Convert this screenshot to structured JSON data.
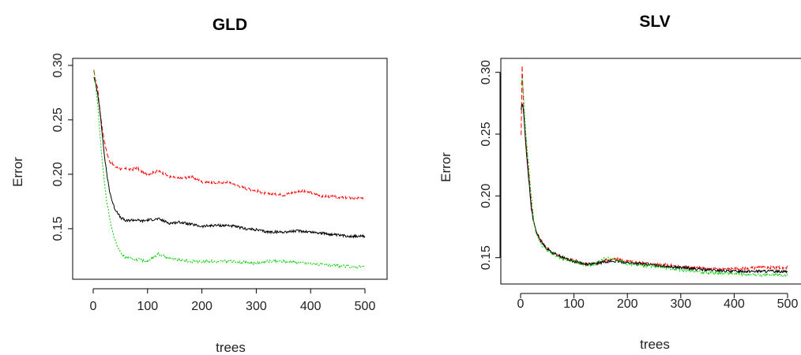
{
  "chart_data": [
    {
      "type": "line",
      "title": "GLD",
      "xlabel": "trees",
      "ylabel": "Error",
      "xlim": [
        0,
        500
      ],
      "ylim": [
        0.105,
        0.305
      ],
      "xticks": [
        0,
        100,
        200,
        300,
        400,
        500
      ],
      "xtick_labels": [
        "0",
        "100",
        "200",
        "300",
        "400",
        "500"
      ],
      "yticks": [
        0.15,
        0.2,
        0.25,
        0.3
      ],
      "ytick_labels": [
        "0.15",
        "0.20",
        "0.25",
        "0.30"
      ],
      "grid": false,
      "series": [
        {
          "color": "#ff0000",
          "dash": "dashed",
          "x": [
            1,
            3,
            5,
            8,
            12,
            16,
            20,
            25,
            30,
            40,
            50,
            60,
            70,
            80,
            90,
            100,
            120,
            140,
            160,
            180,
            200,
            220,
            250,
            280,
            300,
            320,
            350,
            380,
            400,
            420,
            450,
            480,
            500
          ],
          "values": [
            0.295,
            0.29,
            0.285,
            0.28,
            0.26,
            0.245,
            0.232,
            0.22,
            0.212,
            0.207,
            0.205,
            0.205,
            0.204,
            0.206,
            0.202,
            0.2,
            0.203,
            0.198,
            0.196,
            0.198,
            0.193,
            0.192,
            0.193,
            0.187,
            0.185,
            0.182,
            0.181,
            0.185,
            0.183,
            0.18,
            0.179,
            0.178,
            0.178
          ]
        },
        {
          "color": "#000000",
          "dash": "solid",
          "x": [
            1,
            3,
            5,
            8,
            12,
            16,
            20,
            25,
            30,
            35,
            40,
            45,
            50,
            55,
            60,
            70,
            80,
            90,
            100,
            120,
            140,
            160,
            180,
            200,
            220,
            250,
            280,
            300,
            320,
            350,
            380,
            400,
            420,
            450,
            480,
            500
          ],
          "values": [
            0.29,
            0.285,
            0.282,
            0.275,
            0.26,
            0.24,
            0.22,
            0.2,
            0.185,
            0.175,
            0.168,
            0.165,
            0.16,
            0.159,
            0.157,
            0.158,
            0.158,
            0.157,
            0.158,
            0.159,
            0.155,
            0.156,
            0.154,
            0.152,
            0.153,
            0.153,
            0.15,
            0.149,
            0.147,
            0.147,
            0.148,
            0.147,
            0.146,
            0.144,
            0.143,
            0.143
          ]
        },
        {
          "color": "#00cc00",
          "dash": "dotted",
          "x": [
            1,
            3,
            5,
            8,
            12,
            16,
            20,
            25,
            30,
            35,
            40,
            45,
            50,
            55,
            60,
            70,
            80,
            90,
            100,
            120,
            140,
            160,
            180,
            200,
            220,
            250,
            280,
            300,
            320,
            350,
            380,
            400,
            420,
            450,
            480,
            500
          ],
          "values": [
            0.295,
            0.29,
            0.28,
            0.265,
            0.24,
            0.215,
            0.195,
            0.175,
            0.16,
            0.148,
            0.14,
            0.133,
            0.128,
            0.125,
            0.124,
            0.123,
            0.122,
            0.121,
            0.12,
            0.127,
            0.123,
            0.121,
            0.12,
            0.12,
            0.12,
            0.12,
            0.119,
            0.118,
            0.12,
            0.12,
            0.119,
            0.118,
            0.117,
            0.116,
            0.115,
            0.115
          ]
        }
      ]
    },
    {
      "type": "line",
      "title": "SLV",
      "xlabel": "trees",
      "ylabel": "Error",
      "xlim": [
        0,
        500
      ],
      "ylim": [
        0.13,
        0.31
      ],
      "xticks": [
        0,
        100,
        200,
        300,
        400,
        500
      ],
      "xtick_labels": [
        "0",
        "100",
        "200",
        "300",
        "400",
        "500"
      ],
      "yticks": [
        0.15,
        0.2,
        0.25,
        0.3
      ],
      "ytick_labels": [
        "0.15",
        "0.20",
        "0.25",
        "0.30"
      ],
      "grid": false,
      "series": [
        {
          "color": "#ff0000",
          "dash": "dashed",
          "x": [
            1,
            3,
            5,
            7,
            10,
            15,
            20,
            25,
            30,
            40,
            50,
            60,
            80,
            100,
            120,
            140,
            160,
            180,
            200,
            250,
            300,
            350,
            400,
            450,
            500
          ],
          "values": [
            0.25,
            0.305,
            0.28,
            0.26,
            0.245,
            0.22,
            0.195,
            0.178,
            0.17,
            0.163,
            0.158,
            0.154,
            0.15,
            0.148,
            0.145,
            0.145,
            0.148,
            0.149,
            0.147,
            0.145,
            0.143,
            0.141,
            0.141,
            0.142,
            0.142
          ]
        },
        {
          "color": "#000000",
          "dash": "solid",
          "x": [
            1,
            3,
            5,
            7,
            10,
            15,
            20,
            25,
            30,
            40,
            50,
            60,
            80,
            100,
            120,
            140,
            160,
            180,
            200,
            250,
            300,
            350,
            400,
            450,
            500
          ],
          "values": [
            0.27,
            0.275,
            0.27,
            0.26,
            0.24,
            0.215,
            0.19,
            0.178,
            0.17,
            0.162,
            0.157,
            0.154,
            0.15,
            0.147,
            0.145,
            0.145,
            0.147,
            0.147,
            0.146,
            0.144,
            0.142,
            0.14,
            0.139,
            0.139,
            0.139
          ]
        },
        {
          "color": "#00cc00",
          "dash": "dotted",
          "x": [
            1,
            3,
            5,
            7,
            10,
            15,
            20,
            25,
            30,
            40,
            50,
            60,
            80,
            100,
            120,
            140,
            160,
            180,
            200,
            250,
            300,
            350,
            400,
            450,
            500
          ],
          "values": [
            0.29,
            0.295,
            0.285,
            0.27,
            0.25,
            0.225,
            0.2,
            0.18,
            0.168,
            0.16,
            0.156,
            0.153,
            0.149,
            0.147,
            0.144,
            0.145,
            0.15,
            0.148,
            0.145,
            0.143,
            0.14,
            0.138,
            0.137,
            0.136,
            0.136
          ]
        }
      ]
    }
  ]
}
